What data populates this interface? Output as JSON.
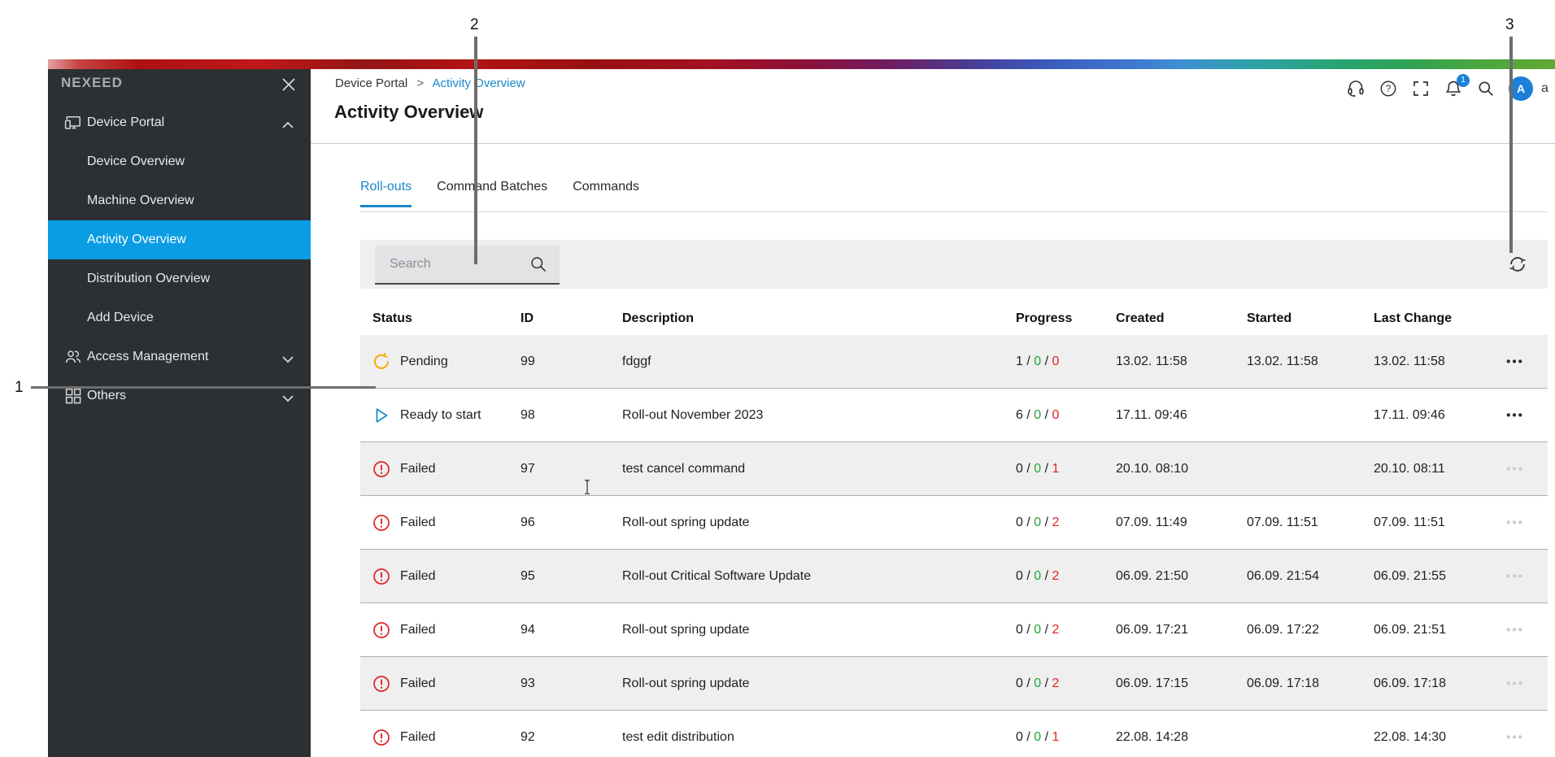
{
  "annotations": {
    "callouts": [
      {
        "label": "1"
      },
      {
        "label": "2"
      },
      {
        "label": "3"
      }
    ]
  },
  "sidebar": {
    "brand": "NEXEED",
    "items": [
      {
        "label": "Device Portal",
        "icon": "devices",
        "chevron": "up"
      },
      {
        "label": "Device Overview",
        "child": true
      },
      {
        "label": "Machine Overview",
        "child": true
      },
      {
        "label": "Activity Overview",
        "child": true,
        "active": true
      },
      {
        "label": "Distribution Overview",
        "child": true
      },
      {
        "label": "Add Device",
        "child": true
      },
      {
        "label": "Access Management",
        "icon": "users",
        "chevron": "down"
      },
      {
        "label": "Others",
        "icon": "widgets",
        "chevron": "down"
      }
    ]
  },
  "header": {
    "breadcrumb": {
      "parent": "Device Portal",
      "separator": ">",
      "current": "Activity Overview"
    },
    "title": "Activity Overview",
    "notification_badge": "1",
    "avatar_initial": "A",
    "user_text_clipped": "a"
  },
  "tabs": [
    {
      "label": "Roll-outs",
      "active": true
    },
    {
      "label": "Command Batches"
    },
    {
      "label": "Commands"
    }
  ],
  "toolbar": {
    "search_placeholder": "Search"
  },
  "table": {
    "columns": [
      "Status",
      "ID",
      "Description",
      "Progress",
      "Created",
      "Started",
      "Last Change"
    ],
    "menu_glyph": "•••",
    "rows": [
      {
        "status": "Pending",
        "status_type": "pending",
        "id": "99",
        "description": "fdggf",
        "progress": [
          "1",
          "0",
          "0"
        ],
        "created": "13.02. 11:58",
        "started": "13.02. 11:58",
        "last_change": "13.02. 11:58",
        "menu_enabled": true
      },
      {
        "status": "Ready to start",
        "status_type": "ready",
        "id": "98",
        "description": "Roll-out November 2023",
        "progress": [
          "6",
          "0",
          "0"
        ],
        "created": "17.11. 09:46",
        "started": "",
        "last_change": "17.11. 09:46",
        "menu_enabled": true
      },
      {
        "status": "Failed",
        "status_type": "failed",
        "id": "97",
        "description": "test cancel command",
        "progress": [
          "0",
          "0",
          "1"
        ],
        "created": "20.10. 08:10",
        "started": "",
        "last_change": "20.10. 08:11",
        "menu_enabled": false
      },
      {
        "status": "Failed",
        "status_type": "failed",
        "id": "96",
        "description": "Roll-out spring update",
        "progress": [
          "0",
          "0",
          "2"
        ],
        "created": "07.09. 11:49",
        "started": "07.09. 11:51",
        "last_change": "07.09. 11:51",
        "menu_enabled": false
      },
      {
        "status": "Failed",
        "status_type": "failed",
        "id": "95",
        "description": "Roll-out Critical Software Update",
        "progress": [
          "0",
          "0",
          "2"
        ],
        "created": "06.09. 21:50",
        "started": "06.09. 21:54",
        "last_change": "06.09. 21:55",
        "menu_enabled": false
      },
      {
        "status": "Failed",
        "status_type": "failed",
        "id": "94",
        "description": "Roll-out spring update",
        "progress": [
          "0",
          "0",
          "2"
        ],
        "created": "06.09. 17:21",
        "started": "06.09. 17:22",
        "last_change": "06.09. 21:51",
        "menu_enabled": false
      },
      {
        "status": "Failed",
        "status_type": "failed",
        "id": "93",
        "description": "Roll-out spring update",
        "progress": [
          "0",
          "0",
          "2"
        ],
        "created": "06.09. 17:15",
        "started": "06.09. 17:18",
        "last_change": "06.09. 17:18",
        "menu_enabled": false
      },
      {
        "status": "Failed",
        "status_type": "failed",
        "id": "92",
        "description": "test edit distribution",
        "progress": [
          "0",
          "0",
          "1"
        ],
        "created": "22.08. 14:28",
        "started": "",
        "last_change": "22.08. 14:30",
        "menu_enabled": false
      }
    ]
  },
  "colors": {
    "sidebar_bg": "#2d3033",
    "active_item_blue": "#0a9de4",
    "link_blue": "#1789cb",
    "badge_blue": "#1b80d8",
    "success_green": "#23a637",
    "error_red": "#e02323",
    "pending_yellow": "#efb000"
  }
}
